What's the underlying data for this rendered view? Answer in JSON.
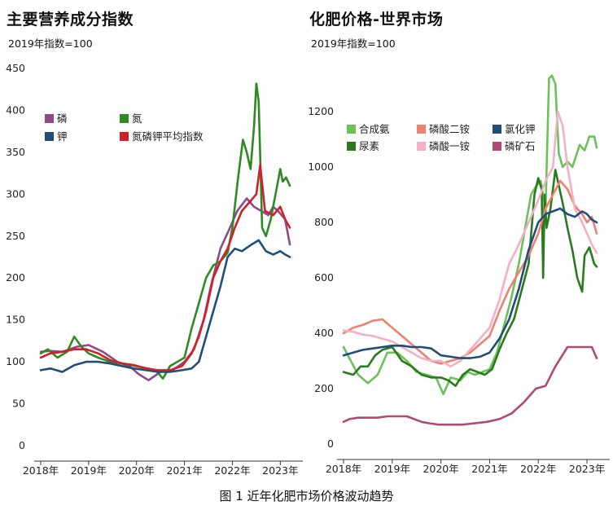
{
  "caption": "图 1  近年化肥市场价格波动趋势",
  "chart_data": [
    {
      "type": "line",
      "title": "主要营养成分指数",
      "subtitle": "2019年指数=100",
      "ylim": [
        0,
        450
      ],
      "yticks": [
        "0",
        "50",
        "100",
        "150",
        "200",
        "250",
        "300",
        "350",
        "400",
        "450"
      ],
      "xlim": [
        2018,
        2023.3
      ],
      "xticks": [
        {
          "x": 2018,
          "label": "2018年"
        },
        {
          "x": 2019,
          "label": "2019年"
        },
        {
          "x": 2020,
          "label": "2020年"
        },
        {
          "x": 2021,
          "label": "2021年"
        },
        {
          "x": 2022,
          "label": "2022年"
        },
        {
          "x": 2023,
          "label": "2023年"
        }
      ],
      "grid": false,
      "legend_location": "upper-left",
      "series": [
        {
          "name": "磷",
          "color": "#8e4a8a",
          "x": [
            2018.0,
            2018.2,
            2018.45,
            2018.75,
            2019.0,
            2019.3,
            2019.6,
            2019.85,
            2020.05,
            2020.25,
            2020.5,
            2020.75,
            2021.0,
            2021.2,
            2021.4,
            2021.55,
            2021.75,
            2021.95,
            2022.1,
            2022.3,
            2022.45,
            2022.6,
            2022.75,
            2022.85,
            2022.95,
            2023.1,
            2023.2
          ],
          "y": [
            112,
            113,
            112,
            118,
            120,
            112,
            100,
            95,
            85,
            78,
            88,
            90,
            100,
            115,
            150,
            190,
            235,
            260,
            280,
            295,
            285,
            280,
            275,
            285,
            280,
            270,
            240
          ]
        },
        {
          "name": "氮",
          "color": "#2e8b22",
          "x": [
            2018.0,
            2018.15,
            2018.35,
            2018.55,
            2018.7,
            2018.85,
            2019.0,
            2019.2,
            2019.45,
            2019.7,
            2019.9,
            2020.15,
            2020.4,
            2020.55,
            2020.7,
            2020.85,
            2021.0,
            2021.15,
            2021.3,
            2021.45,
            2021.6,
            2021.75,
            2021.9,
            2022.0,
            2022.12,
            2022.22,
            2022.3,
            2022.38,
            2022.45,
            2022.5,
            2022.55,
            2022.62,
            2022.7,
            2022.8,
            2022.9,
            2023.0,
            2023.05,
            2023.12,
            2023.2
          ],
          "y": [
            110,
            115,
            105,
            112,
            130,
            118,
            110,
            105,
            100,
            98,
            96,
            93,
            90,
            80,
            95,
            100,
            105,
            140,
            170,
            200,
            215,
            220,
            230,
            260,
            320,
            365,
            350,
            330,
            380,
            432,
            410,
            260,
            250,
            270,
            300,
            330,
            315,
            320,
            310
          ]
        },
        {
          "name": "钾",
          "color": "#1f4e79",
          "x": [
            2018.0,
            2018.2,
            2018.45,
            2018.7,
            2018.95,
            2019.2,
            2019.45,
            2019.7,
            2019.95,
            2020.2,
            2020.45,
            2020.7,
            2020.95,
            2021.15,
            2021.3,
            2021.45,
            2021.6,
            2021.75,
            2021.9,
            2022.05,
            2022.2,
            2022.4,
            2022.55,
            2022.7,
            2022.85,
            2023.0,
            2023.1,
            2023.2
          ],
          "y": [
            90,
            92,
            88,
            96,
            100,
            100,
            98,
            95,
            92,
            90,
            88,
            88,
            90,
            92,
            100,
            130,
            160,
            190,
            225,
            235,
            232,
            240,
            245,
            232,
            228,
            232,
            228,
            225
          ]
        },
        {
          "name": "氮磷钾平均指数",
          "color": "#d0202a",
          "x": [
            2018.0,
            2018.2,
            2018.45,
            2018.7,
            2018.95,
            2019.2,
            2019.45,
            2019.7,
            2019.95,
            2020.2,
            2020.45,
            2020.7,
            2020.95,
            2021.15,
            2021.3,
            2021.45,
            2021.6,
            2021.75,
            2021.9,
            2022.05,
            2022.2,
            2022.35,
            2022.5,
            2022.58,
            2022.68,
            2022.85,
            2023.0,
            2023.1,
            2023.2
          ],
          "y": [
            105,
            110,
            112,
            115,
            115,
            110,
            102,
            98,
            96,
            92,
            90,
            90,
            95,
            110,
            130,
            160,
            200,
            220,
            235,
            260,
            280,
            290,
            300,
            335,
            280,
            275,
            285,
            270,
            260
          ]
        }
      ]
    },
    {
      "type": "line",
      "title": "化肥价格-世界市场",
      "subtitle": "2019年指数=100",
      "ylim": [
        0,
        1350
      ],
      "yticks": [
        "0",
        "200",
        "400",
        "600",
        "800",
        "1000",
        "1200"
      ],
      "xlim": [
        2018,
        2023.3
      ],
      "xticks": [
        {
          "x": 2018,
          "label": "2018年"
        },
        {
          "x": 2019,
          "label": "2019年"
        },
        {
          "x": 2020,
          "label": "2020年"
        },
        {
          "x": 2021,
          "label": "2021年"
        },
        {
          "x": 2022,
          "label": "2022年"
        },
        {
          "x": 2023,
          "label": "2023年"
        }
      ],
      "grid": false,
      "legend_location": "upper-left",
      "series": [
        {
          "name": "合成氨",
          "color": "#6cc15a",
          "x": [
            2018.0,
            2018.15,
            2018.3,
            2018.5,
            2018.7,
            2018.9,
            2019.1,
            2019.3,
            2019.5,
            2019.7,
            2019.9,
            2020.05,
            2020.2,
            2020.4,
            2020.55,
            2020.7,
            2020.85,
            2021.0,
            2021.15,
            2021.3,
            2021.45,
            2021.6,
            2021.75,
            2021.85,
            2021.95,
            2022.05,
            2022.15,
            2022.22,
            2022.28,
            2022.35,
            2022.42,
            2022.5,
            2022.6,
            2022.7,
            2022.85,
            2022.95,
            2023.05,
            2023.15,
            2023.2
          ],
          "y": [
            350,
            300,
            250,
            220,
            250,
            330,
            330,
            300,
            260,
            250,
            240,
            180,
            240,
            230,
            260,
            250,
            260,
            270,
            330,
            430,
            530,
            650,
            800,
            900,
            930,
            950,
            850,
            1320,
            1330,
            1300,
            1050,
            1000,
            1020,
            1000,
            1080,
            1060,
            1110,
            1110,
            1070
          ]
        },
        {
          "name": "尿素",
          "color": "#2a7a1e",
          "x": [
            2018.0,
            2018.2,
            2018.35,
            2018.5,
            2018.65,
            2018.8,
            2019.0,
            2019.2,
            2019.4,
            2019.6,
            2019.8,
            2020.0,
            2020.15,
            2020.3,
            2020.45,
            2020.6,
            2020.75,
            2020.9,
            2021.05,
            2021.2,
            2021.35,
            2021.5,
            2021.65,
            2021.8,
            2021.92,
            2022.0,
            2022.07,
            2022.1,
            2022.13,
            2022.17,
            2022.25,
            2022.35,
            2022.5,
            2022.6,
            2022.7,
            2022.8,
            2022.9,
            2022.95,
            2023.05,
            2023.15,
            2023.2
          ],
          "y": [
            260,
            250,
            280,
            280,
            320,
            340,
            350,
            300,
            280,
            250,
            240,
            240,
            230,
            210,
            250,
            270,
            260,
            250,
            270,
            340,
            400,
            450,
            550,
            650,
            900,
            960,
            920,
            600,
            900,
            780,
            850,
            990,
            870,
            780,
            700,
            600,
            550,
            680,
            710,
            650,
            640
          ]
        },
        {
          "name": "磷酸二铵",
          "color": "#f08070",
          "x": [
            2018.0,
            2018.2,
            2018.4,
            2018.6,
            2018.8,
            2019.0,
            2019.2,
            2019.4,
            2019.6,
            2019.8,
            2020.0,
            2020.2,
            2020.4,
            2020.6,
            2020.8,
            2021.0,
            2021.2,
            2021.4,
            2021.6,
            2021.8,
            2022.0,
            2022.15,
            2022.3,
            2022.45,
            2022.6,
            2022.75,
            2022.9,
            2023.0,
            2023.1,
            2023.2
          ],
          "y": [
            400,
            420,
            430,
            445,
            450,
            420,
            390,
            360,
            330,
            300,
            290,
            300,
            310,
            330,
            360,
            390,
            480,
            560,
            620,
            680,
            760,
            850,
            900,
            950,
            920,
            860,
            830,
            800,
            820,
            760
          ]
        },
        {
          "name": "磷酸一铵",
          "color": "#f4b0c4",
          "x": [
            2018.0,
            2018.2,
            2018.4,
            2018.6,
            2018.8,
            2019.0,
            2019.2,
            2019.4,
            2019.6,
            2019.8,
            2020.0,
            2020.2,
            2020.4,
            2020.6,
            2020.8,
            2021.0,
            2021.2,
            2021.4,
            2021.6,
            2021.8,
            2022.0,
            2022.15,
            2022.3,
            2022.4,
            2022.5,
            2022.6,
            2022.75,
            2022.9,
            2023.0,
            2023.1,
            2023.2
          ],
          "y": [
            410,
            405,
            395,
            390,
            380,
            370,
            350,
            330,
            310,
            300,
            300,
            280,
            300,
            340,
            380,
            420,
            520,
            650,
            720,
            800,
            880,
            950,
            1000,
            1200,
            1150,
            1000,
            850,
            800,
            760,
            720,
            690
          ]
        },
        {
          "name": "氯化钾",
          "color": "#1f4e79",
          "x": [
            2018.0,
            2018.2,
            2018.4,
            2018.6,
            2018.8,
            2019.0,
            2019.2,
            2019.4,
            2019.6,
            2019.8,
            2020.0,
            2020.2,
            2020.4,
            2020.6,
            2020.8,
            2021.0,
            2021.2,
            2021.4,
            2021.6,
            2021.8,
            2022.0,
            2022.15,
            2022.3,
            2022.45,
            2022.6,
            2022.75,
            2022.9,
            2023.0,
            2023.1,
            2023.2
          ],
          "y": [
            320,
            330,
            340,
            345,
            350,
            355,
            355,
            350,
            350,
            345,
            320,
            315,
            310,
            310,
            315,
            330,
            380,
            450,
            560,
            700,
            800,
            830,
            840,
            850,
            830,
            820,
            840,
            830,
            810,
            800
          ]
        },
        {
          "name": "磷矿石",
          "color": "#b04a72",
          "x": [
            2018.0,
            2018.12,
            2018.3,
            2018.5,
            2018.7,
            2018.9,
            2019.1,
            2019.3,
            2019.6,
            2019.75,
            2019.95,
            2020.2,
            2020.45,
            2020.7,
            2020.95,
            2021.2,
            2021.45,
            2021.7,
            2021.95,
            2022.15,
            2022.35,
            2022.6,
            2022.8,
            2022.95,
            2023.1,
            2023.2
          ],
          "y": [
            80,
            90,
            95,
            95,
            95,
            100,
            100,
            100,
            80,
            75,
            70,
            70,
            70,
            75,
            80,
            90,
            110,
            150,
            200,
            210,
            280,
            350,
            350,
            350,
            350,
            310
          ]
        }
      ]
    }
  ]
}
